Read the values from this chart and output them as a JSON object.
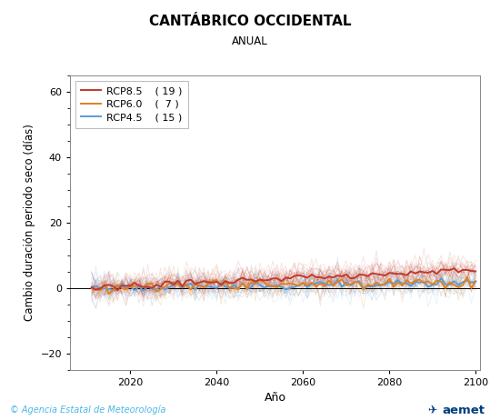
{
  "title": "CANTÁBRICO OCCIDENTAL",
  "subtitle": "ANUAL",
  "xlabel": "Año",
  "ylabel": "Cambio duración periodo seco (días)",
  "xlim": [
    2006,
    2101
  ],
  "ylim": [
    -25,
    65
  ],
  "yticks": [
    -20,
    0,
    20,
    40,
    60
  ],
  "xticks": [
    2020,
    2040,
    2060,
    2080,
    2100
  ],
  "rcp85_color": "#c0392b",
  "rcp60_color": "#e08020",
  "rcp45_color": "#5b9bd5",
  "rcp85_label": "RCP8.5",
  "rcp60_label": "RCP6.0",
  "rcp45_label": "RCP4.5",
  "rcp85_n": "( 19 )",
  "rcp60_n": "(  7 )",
  "rcp45_n": "( 15 )",
  "seed": 42,
  "n_years": 90,
  "start_year": 2011,
  "footer_left": "© Agencia Estatal de Meteorología",
  "footer_color": "#4db8e8",
  "bg_color": "#ffffff",
  "plot_bg_color": "#ffffff",
  "noise_std": 2.2,
  "rcp85_trend": 5.5,
  "rcp60_trend": 2.0,
  "rcp45_trend": 1.5,
  "title_fontsize": 11,
  "subtitle_fontsize": 8.5,
  "tick_fontsize": 8,
  "ylabel_fontsize": 8.5,
  "xlabel_fontsize": 9,
  "legend_fontsize": 8
}
